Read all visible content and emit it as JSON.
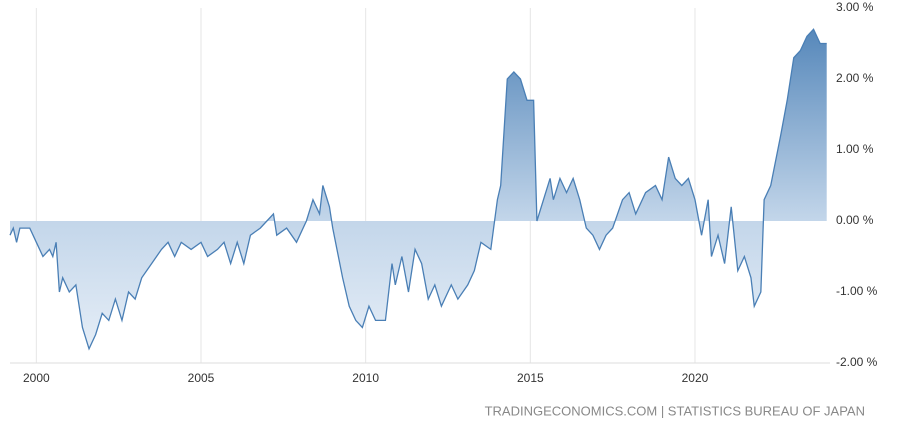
{
  "chart_data": {
    "type": "area",
    "x": [
      1999.2,
      1999.3,
      1999.4,
      1999.5,
      1999.8,
      2000.0,
      2000.2,
      2000.4,
      2000.5,
      2000.6,
      2000.7,
      2000.8,
      2001.0,
      2001.2,
      2001.4,
      2001.6,
      2001.8,
      2002.0,
      2002.2,
      2002.4,
      2002.6,
      2002.8,
      2003.0,
      2003.2,
      2003.5,
      2003.8,
      2004.0,
      2004.2,
      2004.4,
      2004.7,
      2005.0,
      2005.2,
      2005.5,
      2005.7,
      2005.9,
      2006.1,
      2006.3,
      2006.5,
      2006.8,
      2007.0,
      2007.2,
      2007.3,
      2007.6,
      2007.9,
      2008.2,
      2008.4,
      2008.6,
      2008.7,
      2008.9,
      2009.0,
      2009.3,
      2009.5,
      2009.7,
      2009.9,
      2010.1,
      2010.3,
      2010.6,
      2010.8,
      2010.9,
      2011.1,
      2011.3,
      2011.5,
      2011.7,
      2011.9,
      2012.1,
      2012.3,
      2012.6,
      2012.8,
      2013.1,
      2013.3,
      2013.5,
      2013.8,
      2014.0,
      2014.1,
      2014.3,
      2014.5,
      2014.7,
      2014.9,
      2015.1,
      2015.2,
      2015.4,
      2015.6,
      2015.7,
      2015.9,
      2016.1,
      2016.3,
      2016.5,
      2016.7,
      2016.9,
      2017.1,
      2017.3,
      2017.5,
      2017.8,
      2018.0,
      2018.2,
      2018.5,
      2018.8,
      2019.0,
      2019.2,
      2019.4,
      2019.6,
      2019.8,
      2020.0,
      2020.2,
      2020.4,
      2020.5,
      2020.7,
      2020.9,
      2021.1,
      2021.3,
      2021.5,
      2021.7,
      2021.8,
      2022.0,
      2022.1,
      2022.3,
      2022.6,
      2022.8,
      2023.0,
      2023.2,
      2023.4,
      2023.6,
      2023.8,
      2024.0
    ],
    "values": [
      -0.2,
      -0.1,
      -0.3,
      -0.1,
      -0.1,
      -0.3,
      -0.5,
      -0.4,
      -0.5,
      -0.3,
      -1.0,
      -0.8,
      -1.0,
      -0.9,
      -1.5,
      -1.8,
      -1.6,
      -1.3,
      -1.4,
      -1.1,
      -1.4,
      -1.0,
      -1.1,
      -0.8,
      -0.6,
      -0.4,
      -0.3,
      -0.5,
      -0.3,
      -0.4,
      -0.3,
      -0.5,
      -0.4,
      -0.3,
      -0.6,
      -0.3,
      -0.6,
      -0.2,
      -0.1,
      0.0,
      0.1,
      -0.2,
      -0.1,
      -0.3,
      0.0,
      0.3,
      0.1,
      0.5,
      0.2,
      -0.1,
      -0.8,
      -1.2,
      -1.4,
      -1.5,
      -1.2,
      -1.4,
      -1.4,
      -0.6,
      -0.9,
      -0.5,
      -1.0,
      -0.4,
      -0.6,
      -1.1,
      -0.9,
      -1.2,
      -0.9,
      -1.1,
      -0.9,
      -0.7,
      -0.3,
      -0.4,
      0.3,
      0.5,
      2.0,
      2.1,
      2.0,
      1.7,
      1.7,
      0.0,
      0.3,
      0.6,
      0.3,
      0.6,
      0.4,
      0.6,
      0.3,
      -0.1,
      -0.2,
      -0.4,
      -0.2,
      -0.1,
      0.3,
      0.4,
      0.1,
      0.4,
      0.5,
      0.3,
      0.9,
      0.6,
      0.5,
      0.6,
      0.3,
      -0.2,
      0.3,
      -0.5,
      -0.2,
      -0.6,
      0.2,
      -0.7,
      -0.5,
      -0.8,
      -1.2,
      -1.0,
      0.3,
      0.5,
      1.2,
      1.7,
      2.3,
      2.4,
      2.6,
      2.7,
      2.5,
      2.5
    ],
    "color": "#4a7fb5",
    "xlim": [
      1999.2,
      2024.1
    ],
    "xticks": [
      2000,
      2005,
      2010,
      2015,
      2020
    ],
    "ylim": [
      -2,
      3
    ],
    "yticks": [
      {
        "value": -2,
        "label": "-2.00 %"
      },
      {
        "value": -1,
        "label": "-1.00 %"
      },
      {
        "value": 0,
        "label": "0.00 %"
      },
      {
        "value": 1,
        "label": "1.00 %"
      },
      {
        "value": 2,
        "label": "2.00 %"
      },
      {
        "value": 3,
        "label": "3.00 %"
      }
    ],
    "grid": true,
    "source": "TRADINGECONOMICS.COM | STATISTICS BUREAU OF JAPAN"
  }
}
